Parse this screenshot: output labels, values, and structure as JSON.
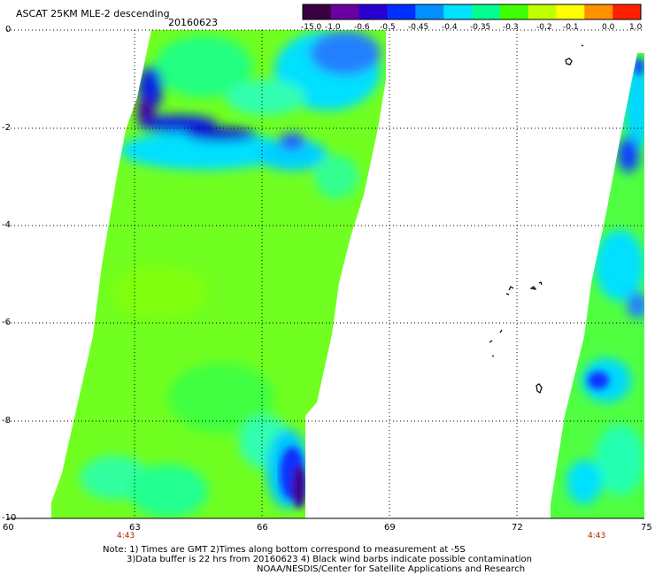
{
  "header": {
    "title": "ASCAT 25KM MLE-2 descending",
    "date": "20160623"
  },
  "colorbar": {
    "labels": [
      "-15.0",
      "-1.0",
      "-0.6",
      "-0.5",
      "-0.45",
      "-0.4",
      "-0.35",
      "-0.3",
      "-0.2",
      "-0.1",
      "0.0",
      "1.0"
    ],
    "colors": [
      "#3a0040",
      "#6a00a0",
      "#2a00d0",
      "#0030ff",
      "#0090ff",
      "#00e0ff",
      "#00ff90",
      "#40ff00",
      "#c0ff00",
      "#ffff00",
      "#ff9000",
      "#ff2000"
    ]
  },
  "axes": {
    "lat_labels": [
      "0",
      "-2",
      "-4",
      "-6",
      "-8",
      "-10"
    ],
    "lon_labels": [
      "60",
      "63",
      "66",
      "69",
      "72",
      "75"
    ],
    "lat_range": [
      -10,
      0
    ],
    "lon_range": [
      60,
      75
    ],
    "grid": true
  },
  "time_labels": [
    "4:43",
    "4:43"
  ],
  "notes": {
    "line1": "Note: 1) Times are GMT 2)Times along bottom correspond to measurement at -5S",
    "line2": "3)Data buffer is 22 hrs from 20160623 4) Black wind barbs indicate possible contamination",
    "line3": "NOAA/NESDIS/Center for Satellite Applications and Research"
  }
}
